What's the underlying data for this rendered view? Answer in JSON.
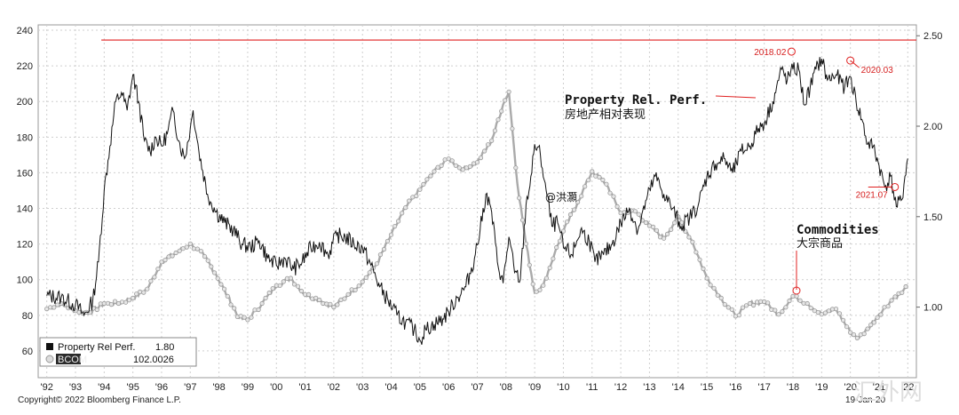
{
  "chart_data": {
    "type": "line",
    "footer_left": "Copyright© 2022 Bloomberg Finance L.P.",
    "footer_right": "19-Jan-20",
    "watermark_center": "@洪灝",
    "watermark_corner": "汇外网",
    "x_ticks": [
      "'92",
      "'93",
      "'94",
      "'95",
      "'96",
      "'97",
      "'98",
      "'99",
      "'00",
      "'01",
      "'02",
      "'03",
      "'04",
      "'05",
      "'06",
      "'07",
      "'08",
      "'09",
      "'10",
      "'11",
      "'12",
      "'13",
      "'14",
      "'15",
      "'16",
      "'17",
      "'18",
      "'19",
      "'20",
      "'21",
      "'22"
    ],
    "x_range": [
      1991.7,
      2022.3
    ],
    "y_left": {
      "range": [
        45,
        243
      ],
      "ticks": [
        60,
        80,
        100,
        120,
        140,
        160,
        180,
        200,
        220,
        240
      ]
    },
    "y_right": {
      "range": [
        0.61,
        2.56
      ],
      "ticks": [
        "1.00",
        "1.50",
        "2.00",
        "2.50"
      ]
    },
    "grid": true,
    "legend_position": "bottom-left",
    "reference_line": {
      "axis": "left",
      "value": 234.5,
      "color": "#e02020"
    },
    "series": [
      {
        "name": "Property Rel Perf.",
        "legend_value": "1.80",
        "axis": "left",
        "color": "#111111",
        "points": [
          [
            1992.0,
            91
          ],
          [
            1992.5,
            90
          ],
          [
            1993.0,
            86
          ],
          [
            1993.3,
            80
          ],
          [
            1993.6,
            88
          ],
          [
            1993.8,
            110
          ],
          [
            1994.0,
            150
          ],
          [
            1994.2,
            175
          ],
          [
            1994.4,
            200
          ],
          [
            1994.6,
            205
          ],
          [
            1994.8,
            195
          ],
          [
            1995.0,
            215
          ],
          [
            1995.2,
            200
          ],
          [
            1995.4,
            178
          ],
          [
            1995.6,
            172
          ],
          [
            1995.8,
            180
          ],
          [
            1996.0,
            175
          ],
          [
            1996.2,
            182
          ],
          [
            1996.4,
            195
          ],
          [
            1996.6,
            178
          ],
          [
            1996.8,
            168
          ],
          [
            1997.0,
            185
          ],
          [
            1997.1,
            195
          ],
          [
            1997.3,
            172
          ],
          [
            1997.6,
            148
          ],
          [
            1997.9,
            138
          ],
          [
            1998.2,
            132
          ],
          [
            1998.5,
            128
          ],
          [
            1998.8,
            120
          ],
          [
            1999.1,
            118
          ],
          [
            1999.4,
            122
          ],
          [
            1999.7,
            112
          ],
          [
            2000.0,
            108
          ],
          [
            2000.3,
            112
          ],
          [
            2000.6,
            106
          ],
          [
            2000.9,
            110
          ],
          [
            2001.2,
            118
          ],
          [
            2001.5,
            121
          ],
          [
            2001.8,
            114
          ],
          [
            2002.1,
            125
          ],
          [
            2002.4,
            124
          ],
          [
            2002.7,
            120
          ],
          [
            2003.0,
            118
          ],
          [
            2003.3,
            108
          ],
          [
            2003.6,
            96
          ],
          [
            2003.9,
            88
          ],
          [
            2004.2,
            80
          ],
          [
            2004.5,
            76
          ],
          [
            2004.8,
            72
          ],
          [
            2005.0,
            66
          ],
          [
            2005.2,
            72
          ],
          [
            2005.5,
            75
          ],
          [
            2005.8,
            78
          ],
          [
            2006.0,
            82
          ],
          [
            2006.3,
            90
          ],
          [
            2006.6,
            96
          ],
          [
            2006.9,
            112
          ],
          [
            2007.1,
            128
          ],
          [
            2007.3,
            148
          ],
          [
            2007.5,
            138
          ],
          [
            2007.7,
            110
          ],
          [
            2007.9,
            98
          ],
          [
            2008.1,
            124
          ],
          [
            2008.3,
            104
          ],
          [
            2008.5,
            100
          ],
          [
            2008.7,
            142
          ],
          [
            2008.9,
            160
          ],
          [
            2009.0,
            176
          ],
          [
            2009.2,
            170
          ],
          [
            2009.4,
            150
          ],
          [
            2009.6,
            130
          ],
          [
            2009.8,
            132
          ],
          [
            2010.0,
            118
          ],
          [
            2010.3,
            114
          ],
          [
            2010.6,
            128
          ],
          [
            2010.9,
            122
          ],
          [
            2011.1,
            110
          ],
          [
            2011.4,
            114
          ],
          [
            2011.7,
            120
          ],
          [
            2012.0,
            132
          ],
          [
            2012.3,
            140
          ],
          [
            2012.6,
            128
          ],
          [
            2012.9,
            145
          ],
          [
            2013.2,
            158
          ],
          [
            2013.5,
            148
          ],
          [
            2013.8,
            140
          ],
          [
            2014.1,
            130
          ],
          [
            2014.4,
            135
          ],
          [
            2014.7,
            142
          ],
          [
            2015.0,
            158
          ],
          [
            2015.3,
            165
          ],
          [
            2015.6,
            168
          ],
          [
            2015.9,
            160
          ],
          [
            2016.2,
            172
          ],
          [
            2016.5,
            175
          ],
          [
            2016.8,
            185
          ],
          [
            2017.0,
            188
          ],
          [
            2017.3,
            200
          ],
          [
            2017.6,
            218
          ],
          [
            2017.8,
            212
          ],
          [
            2018.0,
            218
          ],
          [
            2018.2,
            218
          ],
          [
            2018.4,
            198
          ],
          [
            2018.6,
            208
          ],
          [
            2018.8,
            218
          ],
          [
            2019.0,
            224
          ],
          [
            2019.2,
            212
          ],
          [
            2019.5,
            215
          ],
          [
            2019.8,
            208
          ],
          [
            2020.0,
            214
          ],
          [
            2020.2,
            200
          ],
          [
            2020.4,
            190
          ],
          [
            2020.6,
            176
          ],
          [
            2020.8,
            175
          ],
          [
            2021.0,
            164
          ],
          [
            2021.2,
            152
          ],
          [
            2021.4,
            158
          ],
          [
            2021.6,
            141
          ],
          [
            2021.8,
            145
          ],
          [
            2021.9,
            158
          ],
          [
            2022.0,
            168
          ]
        ]
      },
      {
        "name": "BCOM",
        "legend_value": "102.0026",
        "axis": "right",
        "color": "#aaaaaa",
        "points": [
          [
            1992.0,
            0.99
          ],
          [
            1992.5,
            1.02
          ],
          [
            1993.0,
            0.98
          ],
          [
            1993.5,
            0.97
          ],
          [
            1994.0,
            1.02
          ],
          [
            1994.5,
            1.02
          ],
          [
            1995.0,
            1.05
          ],
          [
            1995.5,
            1.1
          ],
          [
            1996.0,
            1.25
          ],
          [
            1996.5,
            1.3
          ],
          [
            1997.0,
            1.35
          ],
          [
            1997.5,
            1.28
          ],
          [
            1997.9,
            1.18
          ],
          [
            1998.3,
            1.06
          ],
          [
            1998.7,
            0.94
          ],
          [
            1999.0,
            0.93
          ],
          [
            1999.5,
            1.02
          ],
          [
            2000.0,
            1.12
          ],
          [
            2000.5,
            1.16
          ],
          [
            2001.0,
            1.07
          ],
          [
            2001.5,
            1.04
          ],
          [
            2002.0,
            1.0
          ],
          [
            2002.5,
            1.07
          ],
          [
            2003.0,
            1.14
          ],
          [
            2003.5,
            1.24
          ],
          [
            2004.0,
            1.4
          ],
          [
            2004.5,
            1.55
          ],
          [
            2005.0,
            1.65
          ],
          [
            2005.5,
            1.75
          ],
          [
            2006.0,
            1.82
          ],
          [
            2006.5,
            1.76
          ],
          [
            2007.0,
            1.8
          ],
          [
            2007.5,
            1.92
          ],
          [
            2007.9,
            2.12
          ],
          [
            2008.1,
            2.19
          ],
          [
            2008.4,
            1.68
          ],
          [
            2008.7,
            1.35
          ],
          [
            2009.0,
            1.08
          ],
          [
            2009.3,
            1.12
          ],
          [
            2009.7,
            1.3
          ],
          [
            2010.0,
            1.42
          ],
          [
            2010.5,
            1.58
          ],
          [
            2011.0,
            1.75
          ],
          [
            2011.5,
            1.68
          ],
          [
            2012.0,
            1.52
          ],
          [
            2012.5,
            1.53
          ],
          [
            2013.0,
            1.45
          ],
          [
            2013.5,
            1.38
          ],
          [
            2014.0,
            1.5
          ],
          [
            2014.5,
            1.36
          ],
          [
            2015.0,
            1.16
          ],
          [
            2015.5,
            1.05
          ],
          [
            2016.0,
            0.95
          ],
          [
            2016.5,
            1.02
          ],
          [
            2017.0,
            1.03
          ],
          [
            2017.5,
            0.96
          ],
          [
            2018.0,
            1.06
          ],
          [
            2018.5,
            1.02
          ],
          [
            2019.0,
            0.96
          ],
          [
            2019.5,
            0.99
          ],
          [
            2020.0,
            0.86
          ],
          [
            2020.3,
            0.83
          ],
          [
            2020.6,
            0.88
          ],
          [
            2021.0,
            0.96
          ],
          [
            2021.5,
            1.05
          ],
          [
            2021.8,
            1.08
          ],
          [
            2022.0,
            1.12
          ]
        ]
      }
    ],
    "annotations": [
      {
        "text": "2018.02",
        "x": 2017.95,
        "y": 228
      },
      {
        "text": "2020.03",
        "x": 2020.0,
        "y": 223
      },
      {
        "text": "2021.07",
        "x": 2021.55,
        "y": 152
      }
    ],
    "labels": {
      "property_en": "Property Rel. Perf.",
      "property_cn": "房地产相对表现",
      "commodities_en": "Commodities",
      "commodities_cn": "大宗商品"
    }
  }
}
